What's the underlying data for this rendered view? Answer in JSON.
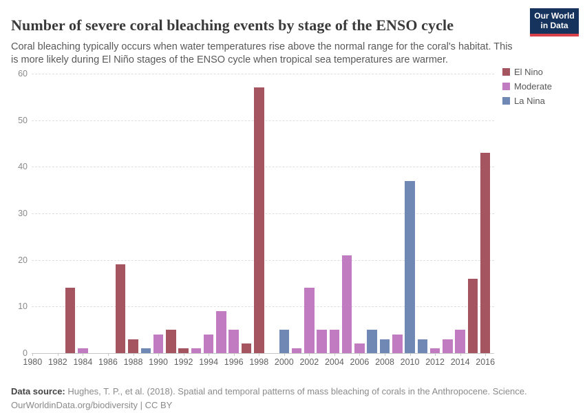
{
  "header": {
    "title": "Number of severe coral bleaching events by stage of the ENSO cycle",
    "subtitle": "Coral bleaching typically occurs when water temperatures rise above the normal range for the coral's habitat. This is more likely during El Niño stages of the ENSO cycle when tropical sea temperatures are warmer.",
    "logo": {
      "line1": "Our World",
      "line2": "in Data",
      "bg_color": "#16335e",
      "stripe_color": "#d8404a"
    }
  },
  "chart_data": {
    "type": "bar",
    "title": "Number of severe coral bleaching events by stage of the ENSO cycle",
    "xlabel": "",
    "ylabel": "",
    "ylim": [
      0,
      60
    ],
    "y_ticks": [
      0,
      10,
      20,
      30,
      40,
      50,
      60
    ],
    "x_range": [
      1980,
      2016
    ],
    "x_tick_labels": [
      "1980",
      "1982",
      "1984",
      "1986",
      "1988",
      "1990",
      "1992",
      "1994",
      "1996",
      "1998",
      "2000",
      "2002",
      "2004",
      "2006",
      "2008",
      "2010",
      "2012",
      "2014",
      "2016"
    ],
    "grid": "horizontal-dashed",
    "legend_position": "top-right",
    "stages": [
      {
        "name": "El Nino",
        "color": "#a4555f"
      },
      {
        "name": "Moderate",
        "color": "#c17cc1"
      },
      {
        "name": "La Nina",
        "color": "#6f88b4"
      }
    ],
    "bars": [
      {
        "year": 1983,
        "stage": "El Nino",
        "value": 14
      },
      {
        "year": 1984,
        "stage": "Moderate",
        "value": 1
      },
      {
        "year": 1987,
        "stage": "El Nino",
        "value": 19
      },
      {
        "year": 1988,
        "stage": "El Nino",
        "value": 3
      },
      {
        "year": 1989,
        "stage": "La Nina",
        "value": 1
      },
      {
        "year": 1990,
        "stage": "Moderate",
        "value": 4
      },
      {
        "year": 1991,
        "stage": "El Nino",
        "value": 5
      },
      {
        "year": 1992,
        "stage": "El Nino",
        "value": 1
      },
      {
        "year": 1993,
        "stage": "Moderate",
        "value": 1
      },
      {
        "year": 1994,
        "stage": "Moderate",
        "value": 4
      },
      {
        "year": 1995,
        "stage": "Moderate",
        "value": 9
      },
      {
        "year": 1996,
        "stage": "Moderate",
        "value": 5
      },
      {
        "year": 1997,
        "stage": "El Nino",
        "value": 2
      },
      {
        "year": 1998,
        "stage": "El Nino",
        "value": 57
      },
      {
        "year": 2000,
        "stage": "La Nina",
        "value": 5
      },
      {
        "year": 2001,
        "stage": "Moderate",
        "value": 1
      },
      {
        "year": 2002,
        "stage": "Moderate",
        "value": 14
      },
      {
        "year": 2003,
        "stage": "Moderate",
        "value": 5
      },
      {
        "year": 2004,
        "stage": "Moderate",
        "value": 5
      },
      {
        "year": 2005,
        "stage": "Moderate",
        "value": 21
      },
      {
        "year": 2006,
        "stage": "Moderate",
        "value": 2
      },
      {
        "year": 2007,
        "stage": "La Nina",
        "value": 5
      },
      {
        "year": 2008,
        "stage": "La Nina",
        "value": 3
      },
      {
        "year": 2009,
        "stage": "Moderate",
        "value": 4
      },
      {
        "year": 2010,
        "stage": "La Nina",
        "value": 37
      },
      {
        "year": 2011,
        "stage": "La Nina",
        "value": 3
      },
      {
        "year": 2012,
        "stage": "Moderate",
        "value": 1
      },
      {
        "year": 2013,
        "stage": "Moderate",
        "value": 3
      },
      {
        "year": 2014,
        "stage": "Moderate",
        "value": 5
      },
      {
        "year": 2015,
        "stage": "El Nino",
        "value": 16
      },
      {
        "year": 2016,
        "stage": "El Nino",
        "value": 43
      }
    ]
  },
  "footer": {
    "source_label": "Data source:",
    "source_text": " Hughes, T. P., et al. (2018). Spatial and temporal patterns of mass bleaching of corals in the Anthropocene. Science.",
    "line2": "OurWorldinData.org/biodiversity | CC BY"
  }
}
